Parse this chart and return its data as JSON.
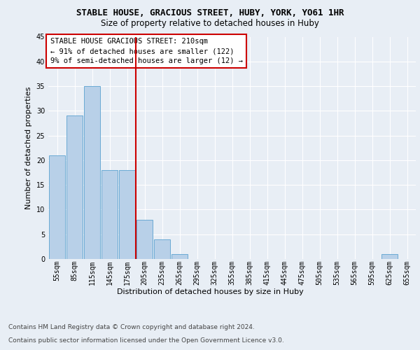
{
  "title1": "STABLE HOUSE, GRACIOUS STREET, HUBY, YORK, YO61 1HR",
  "title2": "Size of property relative to detached houses in Huby",
  "xlabel": "Distribution of detached houses by size in Huby",
  "ylabel": "Number of detached properties",
  "footnote1": "Contains HM Land Registry data © Crown copyright and database right 2024.",
  "footnote2": "Contains public sector information licensed under the Open Government Licence v3.0.",
  "bins": [
    "55sqm",
    "85sqm",
    "115sqm",
    "145sqm",
    "175sqm",
    "205sqm",
    "235sqm",
    "265sqm",
    "295sqm",
    "325sqm",
    "355sqm",
    "385sqm",
    "415sqm",
    "445sqm",
    "475sqm",
    "505sqm",
    "535sqm",
    "565sqm",
    "595sqm",
    "625sqm",
    "655sqm"
  ],
  "values": [
    21,
    29,
    35,
    18,
    18,
    8,
    4,
    1,
    0,
    0,
    0,
    0,
    0,
    0,
    0,
    0,
    0,
    0,
    0,
    1,
    0
  ],
  "bar_color": "#b8d0e8",
  "bar_edge_color": "#6aaad4",
  "vline_color": "#cc0000",
  "vline_x_index": 5,
  "ylim": [
    0,
    45
  ],
  "yticks": [
    0,
    5,
    10,
    15,
    20,
    25,
    30,
    35,
    40,
    45
  ],
  "annotation_text": "STABLE HOUSE GRACIOUS STREET: 210sqm\n← 91% of detached houses are smaller (122)\n9% of semi-detached houses are larger (12) →",
  "annotation_box_facecolor": "#ffffff",
  "annotation_box_edgecolor": "#cc0000",
  "bg_color": "#e8eef5",
  "plot_bg_color": "#e8eef5",
  "grid_color": "#ffffff",
  "title1_fontsize": 9,
  "title2_fontsize": 8.5,
  "ylabel_fontsize": 8,
  "xlabel_fontsize": 8,
  "tick_fontsize": 7,
  "annotation_fontsize": 7.5,
  "footnote_fontsize": 6.5,
  "footnote_color": "#444444"
}
